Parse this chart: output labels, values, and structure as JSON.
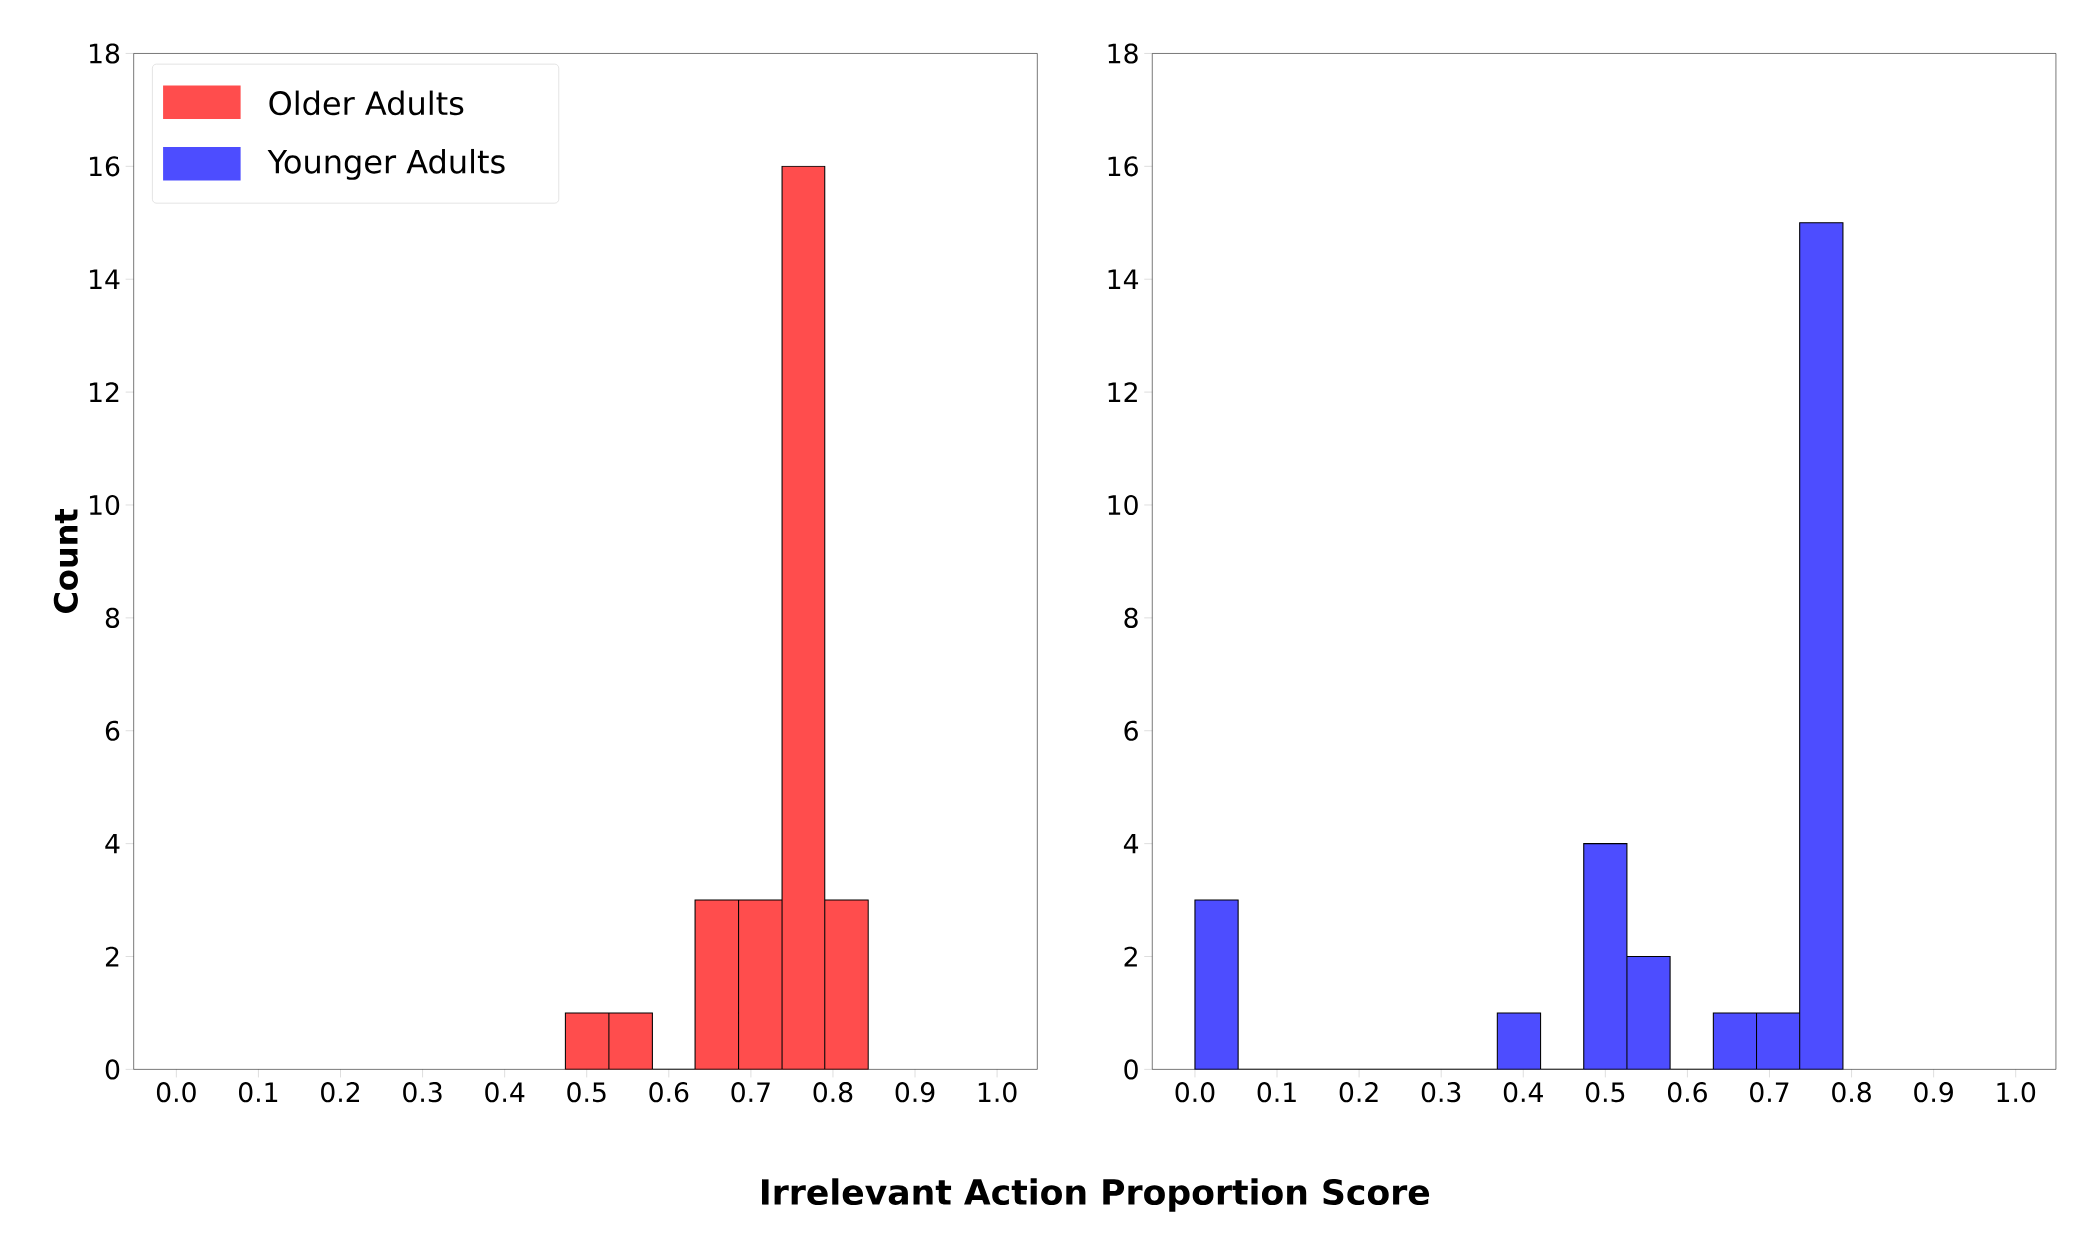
{
  "chart_data": [
    {
      "type": "histogram",
      "xlabel": "Irrelevant Action Proportion Score",
      "ylabel": "Count",
      "bins": [
        0.474,
        0.527,
        0.58,
        0.632,
        0.685,
        0.738,
        0.79,
        0.843
      ],
      "series": [
        {
          "name": "Older Adults",
          "color": "#ff4d4d",
          "values": [
            1,
            1,
            0,
            3,
            3,
            16,
            3
          ]
        }
      ],
      "xlim": [
        -0.052,
        1.049
      ],
      "ylim": [
        0,
        18
      ],
      "xticks": [
        {
          "value": 0,
          "label": "0.0"
        },
        {
          "value": 0.1,
          "label": "0.1"
        },
        {
          "value": 0.2,
          "label": "0.2"
        },
        {
          "value": 0.3,
          "label": "0.3"
        },
        {
          "value": 0.4,
          "label": "0.4"
        },
        {
          "value": 0.5,
          "label": "0.5"
        },
        {
          "value": 0.6,
          "label": "0.6"
        },
        {
          "value": 0.7,
          "label": "0.7"
        },
        {
          "value": 0.8,
          "label": "0.8"
        },
        {
          "value": 0.9,
          "label": "0.9"
        },
        {
          "value": 1,
          "label": "1.0"
        }
      ],
      "yticks": [
        {
          "value": 0,
          "label": "0"
        },
        {
          "value": 2,
          "label": "2"
        },
        {
          "value": 4,
          "label": "4"
        },
        {
          "value": 6,
          "label": "6"
        },
        {
          "value": 8,
          "label": "8"
        },
        {
          "value": 10,
          "label": "10"
        },
        {
          "value": 12,
          "label": "12"
        },
        {
          "value": 14,
          "label": "14"
        },
        {
          "value": 16,
          "label": "16"
        },
        {
          "value": 18,
          "label": "18"
        }
      ],
      "legend": "top left"
    },
    {
      "type": "histogram",
      "bins": [
        0,
        0.0526,
        0.1053,
        0.1579,
        0.2105,
        0.2632,
        0.3158,
        0.3684,
        0.4211,
        0.4737,
        0.5263,
        0.5789,
        0.6316,
        0.6842,
        0.7368,
        0.7895
      ],
      "series": [
        {
          "name": "Younger Adults",
          "color": "#4d4dff",
          "values": [
            3,
            0,
            0,
            0,
            0,
            0,
            0,
            1,
            0,
            4,
            2,
            0,
            1,
            1,
            15
          ]
        }
      ],
      "xlim": [
        -0.052,
        1.049
      ],
      "ylim": [
        0,
        18
      ],
      "xticks": [
        {
          "value": 0,
          "label": "0.0"
        },
        {
          "value": 0.1,
          "label": "0.1"
        },
        {
          "value": 0.2,
          "label": "0.2"
        },
        {
          "value": 0.3,
          "label": "0.3"
        },
        {
          "value": 0.4,
          "label": "0.4"
        },
        {
          "value": 0.5,
          "label": "0.5"
        },
        {
          "value": 0.6,
          "label": "0.6"
        },
        {
          "value": 0.7,
          "label": "0.7"
        },
        {
          "value": 0.8,
          "label": "0.8"
        },
        {
          "value": 0.9,
          "label": "0.9"
        },
        {
          "value": 1,
          "label": "1.0"
        }
      ],
      "yticks": [
        {
          "value": 0,
          "label": "0"
        },
        {
          "value": 2,
          "label": "2"
        },
        {
          "value": 4,
          "label": "4"
        },
        {
          "value": 6,
          "label": "6"
        },
        {
          "value": 8,
          "label": "8"
        },
        {
          "value": 10,
          "label": "10"
        },
        {
          "value": 12,
          "label": "12"
        },
        {
          "value": 14,
          "label": "14"
        },
        {
          "value": 16,
          "label": "16"
        },
        {
          "value": 18,
          "label": "18"
        }
      ]
    }
  ]
}
